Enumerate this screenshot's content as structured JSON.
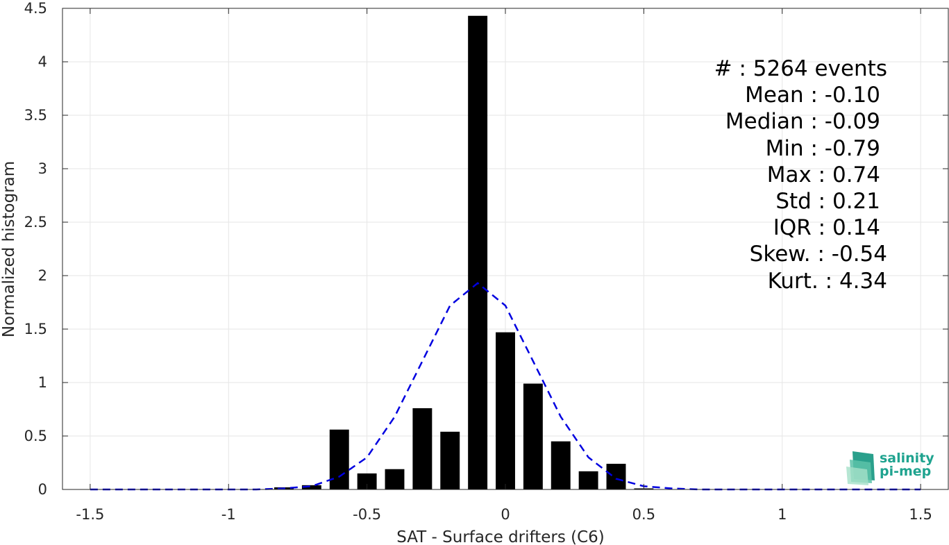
{
  "chart_data": {
    "type": "bar",
    "xlabel": "SAT - Surface drifters (C6)",
    "ylabel": "Normalized histogram",
    "xlim": [
      -1.6,
      1.6
    ],
    "ylim": [
      0,
      4.5
    ],
    "grid": true,
    "xticks": [
      -1.5,
      -1,
      -0.5,
      0,
      0.5,
      1,
      1.5
    ],
    "xtick_labels": [
      "-1.5",
      "-1",
      "-0.5",
      "0",
      "0.5",
      "1",
      "1.5"
    ],
    "yticks": [
      0,
      0.5,
      1,
      1.5,
      2,
      2.5,
      3,
      3.5,
      4,
      4.5
    ],
    "ytick_labels": [
      "0",
      "0.5",
      "1",
      "1.5",
      "2",
      "2.5",
      "3",
      "3.5",
      "4",
      "4.5"
    ],
    "bar_width": 0.07,
    "bar_color": "#000000",
    "bars": {
      "x": [
        -0.8,
        -0.7,
        -0.6,
        -0.5,
        -0.4,
        -0.3,
        -0.2,
        -0.1,
        0.0,
        0.1,
        0.2,
        0.3,
        0.4,
        0.5
      ],
      "values": [
        0.02,
        0.04,
        0.56,
        0.15,
        0.19,
        0.76,
        0.54,
        4.43,
        1.47,
        0.99,
        0.45,
        0.17,
        0.24,
        0.01
      ]
    },
    "fit_curve": {
      "style": "dashed",
      "color": "#0000e0",
      "x": [
        -1.5,
        -1.4,
        -1.3,
        -1.2,
        -1.1,
        -1.0,
        -0.9,
        -0.8,
        -0.7,
        -0.6,
        -0.5,
        -0.4,
        -0.3,
        -0.2,
        -0.1,
        0.0,
        0.1,
        0.2,
        0.3,
        0.4,
        0.5,
        0.6,
        0.7,
        0.8,
        0.9,
        1.0,
        1.1,
        1.2,
        1.3,
        1.4,
        1.5
      ],
      "y": [
        0,
        0,
        0,
        0,
        0,
        0,
        0,
        0.01,
        0.03,
        0.12,
        0.3,
        0.68,
        1.2,
        1.72,
        1.93,
        1.72,
        1.2,
        0.68,
        0.3,
        0.1,
        0.03,
        0.01,
        0,
        0,
        0,
        0,
        0,
        0,
        0,
        0,
        0
      ]
    },
    "stats": [
      "#  : 5264 events",
      "Mean : -0.10",
      "Median : -0.09",
      "Min : -0.79",
      "Max : 0.74",
      "Std : 0.21",
      "IQR : 0.14",
      "Skew. : -0.54",
      "Kurt. : 4.34"
    ]
  },
  "logo": {
    "line1": "salinity",
    "line2": "pi-mep",
    "color": "#1fa38f"
  }
}
